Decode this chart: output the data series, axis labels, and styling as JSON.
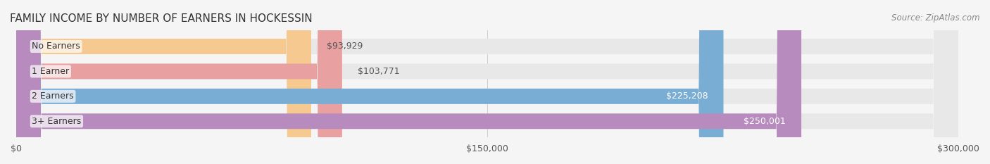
{
  "title": "FAMILY INCOME BY NUMBER OF EARNERS IN HOCKESSIN",
  "source": "Source: ZipAtlas.com",
  "categories": [
    "No Earners",
    "1 Earner",
    "2 Earners",
    "3+ Earners"
  ],
  "values": [
    93929,
    103771,
    225208,
    250001
  ],
  "labels": [
    "$93,929",
    "$103,771",
    "$225,208",
    "$250,001"
  ],
  "bar_colors": [
    "#f5c990",
    "#e8a0a0",
    "#7aadd4",
    "#b88bbf"
  ],
  "bar_bg_color": "#eeeeee",
  "label_colors": [
    "#555555",
    "#555555",
    "#ffffff",
    "#ffffff"
  ],
  "xlim": [
    0,
    300000
  ],
  "xticks": [
    0,
    150000,
    300000
  ],
  "xticklabels": [
    "$0",
    "$150,000",
    "$300,000"
  ],
  "background_color": "#f5f5f5",
  "title_fontsize": 11,
  "source_fontsize": 8.5,
  "label_fontsize": 9,
  "category_fontsize": 9
}
